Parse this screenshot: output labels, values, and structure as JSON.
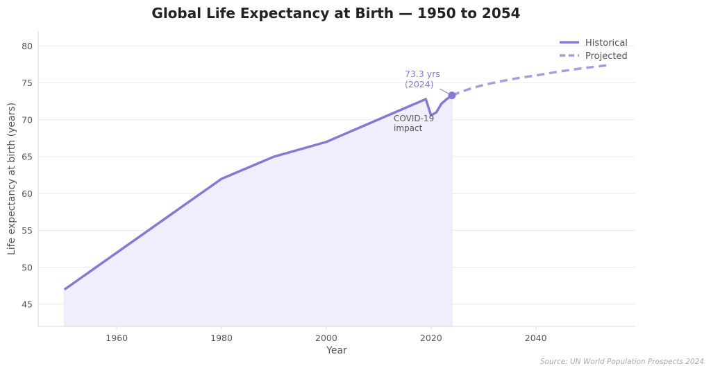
{
  "chart_data": {
    "type": "line",
    "title": "Global Life Expectancy at Birth — 1950 to 2054",
    "xlabel": "Year",
    "ylabel": "Life expectancy at birth (years)",
    "xlim": [
      1945,
      2059
    ],
    "ylim": [
      42,
      82
    ],
    "xticks": [
      1960,
      1980,
      2000,
      2020,
      2040
    ],
    "yticks": [
      45,
      50,
      55,
      60,
      65,
      70,
      75,
      80
    ],
    "grid": "horizontal",
    "legend_position": "top-right",
    "series": [
      {
        "name": "Historical",
        "style": "solid",
        "fill": true,
        "x": [
          1950,
          1980,
          1990,
          2000,
          2019,
          2020,
          2021,
          2022,
          2023,
          2024
        ],
        "y": [
          47.0,
          62.0,
          65.0,
          67.0,
          72.8,
          70.6,
          71.0,
          72.2,
          72.8,
          73.3
        ]
      },
      {
        "name": "Projected",
        "style": "dashed",
        "x": [
          2024,
          2030,
          2040,
          2054
        ],
        "y": [
          73.3,
          74.7,
          76.0,
          77.4
        ]
      }
    ],
    "annotations": [
      {
        "text_line1": "73.3 yrs",
        "text_line2": "(2024)",
        "x": 2024,
        "y": 73.3
      },
      {
        "text_line1": "COVID-19",
        "text_line2": "impact",
        "x": 2020,
        "y": 70.6
      }
    ],
    "source": "Source: UN World Population Prospects 2024",
    "colors": {
      "historical": "#8878d4",
      "projected": "#a89ce0",
      "fill": "#eeeefc",
      "grid": "#ececec",
      "axis": "#d8d8d8",
      "text": "#555555",
      "title": "#222222"
    }
  }
}
